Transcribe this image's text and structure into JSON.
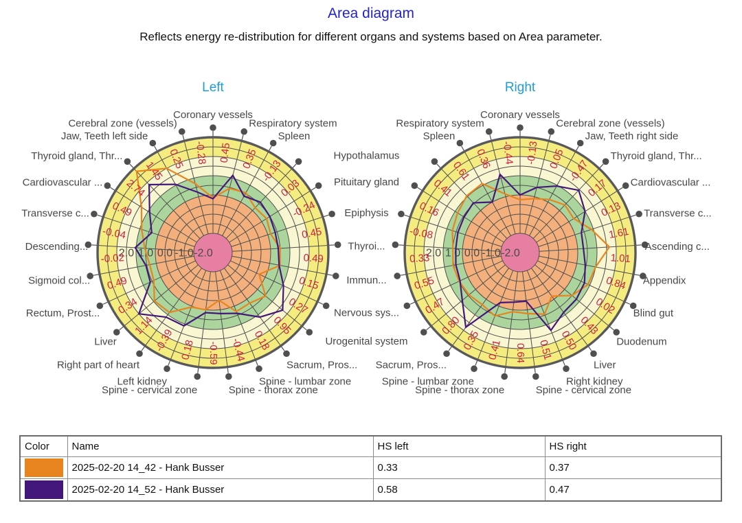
{
  "page": {
    "title": "Area diagram",
    "subtitle": "Reflects energy re-distribution for different organs and systems based on Area parameter."
  },
  "colors": {
    "title": "#2323CE",
    "heading": "#1E9CD6",
    "annotation": "#D0203E",
    "label": "#474747",
    "grid": "#4E4E4E",
    "rim": "#59595B",
    "dot": "#4F4F4F",
    "band_pink": "#E77FA2",
    "band_orange": "#F3B07C",
    "band_green": "#ABD59C",
    "band_cream": "#F8F7D2",
    "band_yellow": "#F5EC80",
    "series_orange": "#E8841E",
    "series_purple": "#43187A"
  },
  "chart_data": [
    {
      "type": "radar",
      "title": "Left",
      "direction": "clockwise",
      "axis_range": [
        -3,
        3
      ],
      "ring_tick_labels": [
        "2.0",
        "1.0",
        "0.0",
        "-1.0",
        "-2.0"
      ],
      "ring_tick_values": [
        2,
        1,
        0,
        -1,
        -2
      ],
      "categories": [
        "Coronary vessels",
        "Respiratory system",
        "Spleen",
        "Hypothalamus",
        "Pituitary gland",
        "Epiphysis",
        "Thyroi...",
        "Immun...",
        "Nervous sys...",
        "Urogenital system",
        "Sacrum, Pros...",
        "Spine - lumbar zone",
        "Spine - thorax zone",
        "Spine - cervical zone",
        "Left kidney",
        "Right part of heart",
        "Liver",
        "Rectum, Prost...",
        "Sigmoid col...",
        "Descending...",
        "Transverse c...",
        "Cardiovascular ...",
        "Thyroid gland, Thr...",
        "Jaw, Teeth left side",
        "Cerebral zone (vessels)"
      ],
      "annotations": [
        "-0.28",
        "0.45",
        "0.35",
        "-0.13",
        "0.03",
        "-0.24",
        "0.45",
        "0.49",
        "0.15",
        "0.27",
        "0.95",
        "0.18",
        "-0.44",
        "-0.59",
        "0.18",
        "-0.39",
        "1.14",
        "0.34",
        "0.49",
        "-0.02",
        "-0.04",
        "0.49",
        "2.74",
        "1.45",
        "0.25"
      ],
      "series": [
        {
          "name": "2025-02-20 14_42 - Hank Busser",
          "color": "#E8841E",
          "values": [
            -0.15,
            0.45,
            0.55,
            0.2,
            0.3,
            0.15,
            0.5,
            0.55,
            -0.35,
            0.55,
            0.25,
            0.3,
            -0.5,
            0.0,
            0.05,
            0.85,
            0.95,
            0.4,
            0.35,
            0.55,
            0.9,
            1.4,
            2.8,
            2.0,
            0.7
          ]
        },
        {
          "name": "2025-02-20 14_52 - Hank Busser",
          "color": "#43187A",
          "values": [
            -0.2,
            1.15,
            0.35,
            0.6,
            0.5,
            0.4,
            0.4,
            0.5,
            1.05,
            1.7,
            1.15,
            0.4,
            0.2,
            0.15,
            1.1,
            1.15,
            2.0,
            0.6,
            0.55,
            1.05,
            0.35,
            0.9,
            1.85,
            1.05,
            0.25
          ]
        }
      ]
    },
    {
      "type": "radar",
      "title": "Right",
      "direction": "counterclockwise",
      "axis_range": [
        -3,
        3
      ],
      "ring_tick_labels": [
        "2.0",
        "1.0",
        "0.0",
        "-1.0",
        "-2.0"
      ],
      "ring_tick_values": [
        2,
        1,
        0,
        -1,
        -2
      ],
      "categories": [
        "Coronary vessels",
        "Respiratory system",
        "Spleen",
        "Hypothalamus",
        "Pituitary gland",
        "Epiphysis",
        "Thyroi...",
        "Immun...",
        "Nervous sys...",
        "Urogenital system",
        "Sacrum, Pros...",
        "Spine - lumbar zone",
        "Spine - thorax zone",
        "Spine - cervical zone",
        "Right kidney",
        "Liver",
        "Duodenum",
        "Blind gut",
        "Appendix",
        "Ascending c...",
        "Transverse c...",
        "Cardiovascular ...",
        "Thyroid gland, Thr...",
        "Jaw, Teeth right side",
        "Cerebral zone (vessels)"
      ],
      "annotations": [
        "-0.44",
        "0.36",
        "0.61",
        "0.41",
        "0.16",
        "-0.08",
        "0.33",
        "0.55",
        "0.47",
        "0.80",
        "0.35",
        "0.41",
        "0.64",
        "0.51",
        "0.50",
        "0.43",
        "0.02",
        "0.84",
        "1.01",
        "1.61",
        "0.13",
        "0.17",
        "-0.47",
        "0.05",
        "-0.13"
      ],
      "series": [
        {
          "name": "2025-02-20 14_42 - Hank Busser",
          "color": "#E8841E",
          "values": [
            -0.25,
            0.15,
            1.1,
            1.05,
            0.85,
            0.7,
            0.5,
            0.55,
            0.5,
            0.45,
            0.35,
            0.55,
            0.1,
            0.2,
            0.45,
            -0.2,
            0.5,
            0.9,
            1.0,
            1.65,
            0.9,
            0.3,
            0.4,
            0.15,
            -0.1
          ]
        },
        {
          "name": "2025-02-20 14_52 - Hank Busser",
          "color": "#43187A",
          "values": [
            0.0,
            1.2,
            0.0,
            0.55,
            0.45,
            0.4,
            0.35,
            0.4,
            0.45,
            0.9,
            1.8,
            -0.2,
            -0.4,
            -0.45,
            1.35,
            0.85,
            0.8,
            0.7,
            0.45,
            0.3,
            0.35,
            1.0,
            1.45,
            0.95,
            0.5
          ]
        }
      ]
    }
  ],
  "legend_table": {
    "headers": [
      "Color",
      "Name",
      "HS left",
      "HS right"
    ],
    "rows": [
      {
        "color": "#E8841E",
        "name": "2025-02-20 14_42 - Hank Busser",
        "hs_left": "0.33",
        "hs_right": "0.37"
      },
      {
        "color": "#43187A",
        "name": "2025-02-20 14_52 - Hank Busser",
        "hs_left": "0.58",
        "hs_right": "0.47"
      }
    ]
  }
}
